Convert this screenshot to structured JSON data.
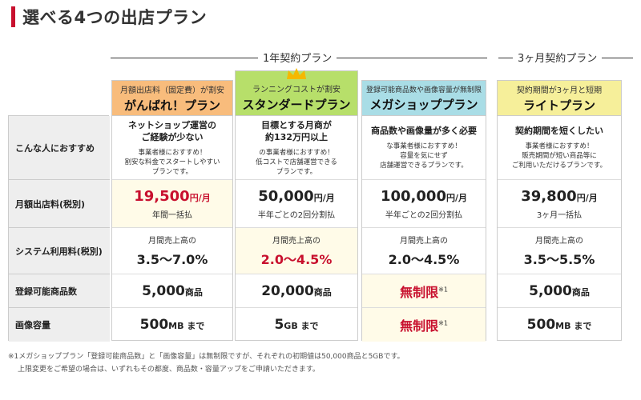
{
  "page_title": "選べる4つの出店プラン",
  "groups": {
    "one_year": "1年契約プラン",
    "three_month": "3ヶ月契約プラン"
  },
  "row_labels": {
    "recommend": "こんな人におすすめ",
    "monthly_fee": "月額出店料(税別)",
    "system_fee": "システム利用料(税別)",
    "item_count": "登録可能商品数",
    "image_capacity": "画像容量"
  },
  "plans": [
    {
      "id": "ganbare",
      "subtitle": "月額出店料（固定費）が割安",
      "name": "がんばれ！プラン",
      "head_color": "#f8bc7c",
      "rec_head1": "ネットショップ運営の",
      "rec_head2": "ご経験が少ない",
      "rec_body1": "事業者様におすすめ！",
      "rec_body2": "割安な料金でスタートしやすい",
      "rec_body3": "プランです。",
      "price": "19,500",
      "price_unit": "円/月",
      "price_note": "年間一括払",
      "sys_label": "月間売上高の",
      "sys_range": "3.5〜7.0%",
      "items": "5,000",
      "items_unit": "商品",
      "image": "500",
      "image_unit": "MB まで"
    },
    {
      "id": "standard",
      "subtitle": "ランニングコストが割安",
      "name": "スタンダードプラン",
      "head_color": "#b7df6a",
      "rec_head1": "目標とする月商が",
      "rec_head2": "約132万円以上",
      "rec_body1": "の事業者様におすすめ！",
      "rec_body2": "低コストで店舗運営できる",
      "rec_body3": "プランです。",
      "price": "50,000",
      "price_unit": "円/月",
      "price_note": "半年ごとの2回分割払",
      "sys_label": "月間売上高の",
      "sys_range": "2.0〜4.5%",
      "items": "20,000",
      "items_unit": "商品",
      "image": "5",
      "image_unit": "GB まで"
    },
    {
      "id": "mega",
      "subtitle": "登録可能商品数や画像容量が無制限",
      "name": "メガショッププラン",
      "head_color": "#a9dde6",
      "rec_head1": "商品数や画像量が多く必要",
      "rec_head2": "",
      "rec_body1": "な事業者様におすすめ！",
      "rec_body2": "容量を気にせず",
      "rec_body3": "店舗運営できるプランです。",
      "price": "100,000",
      "price_unit": "円/月",
      "price_note": "半年ごとの2回分割払",
      "sys_label": "月間売上高の",
      "sys_range": "2.0〜4.5%",
      "items_unlimited": "無制限",
      "items_note": "※1",
      "image_unlimited": "無制限",
      "image_note": "※1"
    },
    {
      "id": "light",
      "subtitle": "契約期間が3ヶ月と短期",
      "name": "ライトプラン",
      "head_color": "#f6ef9a",
      "rec_head1": "契約期間を短くしたい",
      "rec_head2": "",
      "rec_body1": "事業者様におすすめ！",
      "rec_body2": "販売期間が短い商品等に",
      "rec_body3": "ご利用いただけるプランです。",
      "price": "39,800",
      "price_unit": "円/月",
      "price_note": "3ヶ月一括払",
      "sys_label": "月間売上高の",
      "sys_range": "3.5〜5.5%",
      "items": "5,000",
      "items_unit": "商品",
      "image": "500",
      "image_unit": "MB まで"
    }
  ],
  "footnote1": "※1メガショッププラン「登録可能商品数」と「画像容量」は無制限ですが、それぞれの初期値は50,000商品と5GBです。",
  "footnote2": "上限変更をご希望の場合は、いずれもその都度、商品数・容量アップをご申請いただきます。",
  "colors": {
    "accent_red": "#c8102e",
    "crown": "#f5b800"
  }
}
